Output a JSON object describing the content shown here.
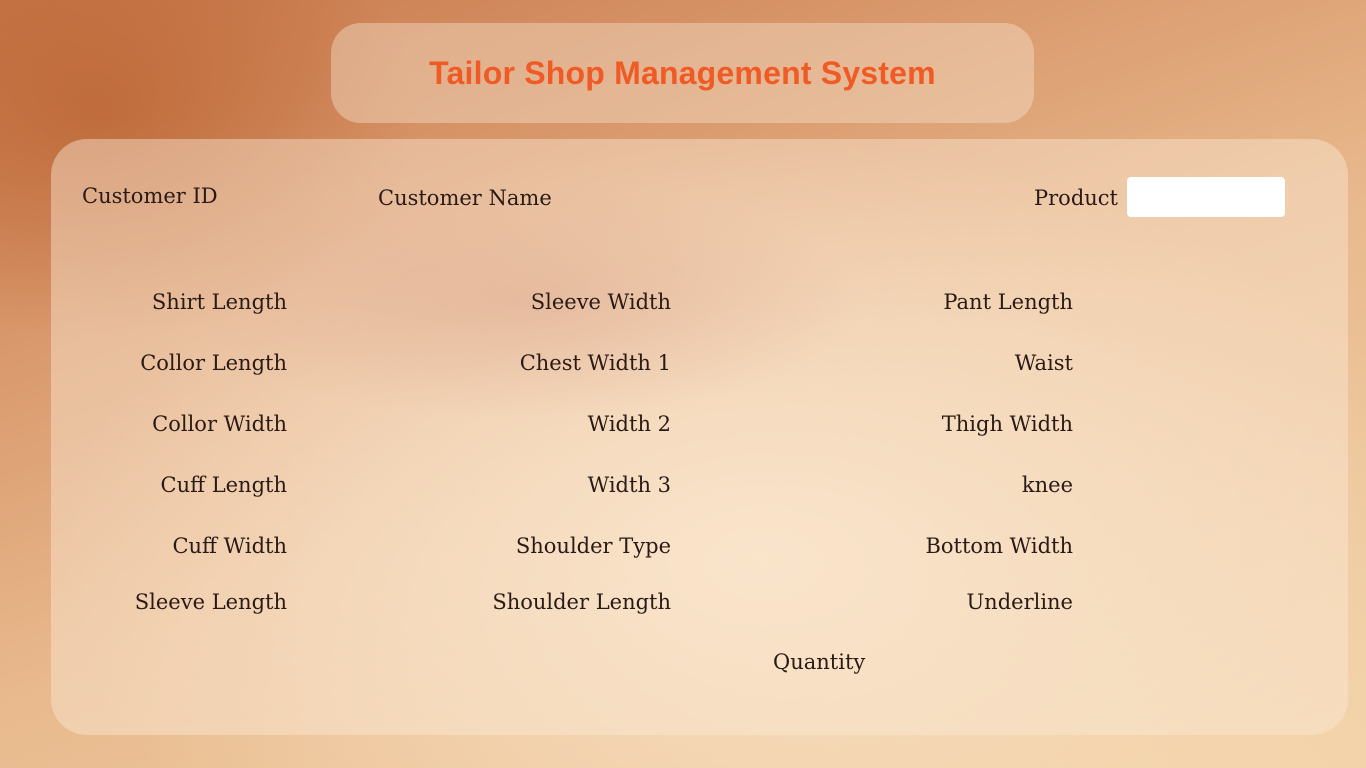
{
  "app": {
    "title": "Tailor Shop Management System"
  },
  "header": {
    "customer_id_label": "Customer ID",
    "customer_name_label": "Customer Name",
    "product_label": "Product",
    "product_value": ""
  },
  "shirt": {
    "shirt_length": "Shirt Length",
    "collor_length": "Collor Length",
    "collor_width": "Collor Width",
    "cuff_length": "Cuff Length",
    "cuff_width": "Cuff Width",
    "sleeve_length": "Sleeve Length"
  },
  "body": {
    "sleeve_width": "Sleeve Width",
    "chest_width_1": "Chest Width 1",
    "width_2": "Width 2",
    "width_3": "Width 3",
    "shoulder_type": "Shoulder Type",
    "shoulder_length": "Shoulder Length"
  },
  "pant": {
    "pant_length": "Pant Length",
    "waist": "Waist",
    "thigh_width": "Thigh Width",
    "knee": "knee",
    "bottom_width": "Bottom Width",
    "underline": "Underline"
  },
  "footer": {
    "quantity_label": "Quantity"
  },
  "colors": {
    "title": "#f05a24",
    "label_text": "#2a1a16",
    "input_bg": "#ffffff"
  }
}
